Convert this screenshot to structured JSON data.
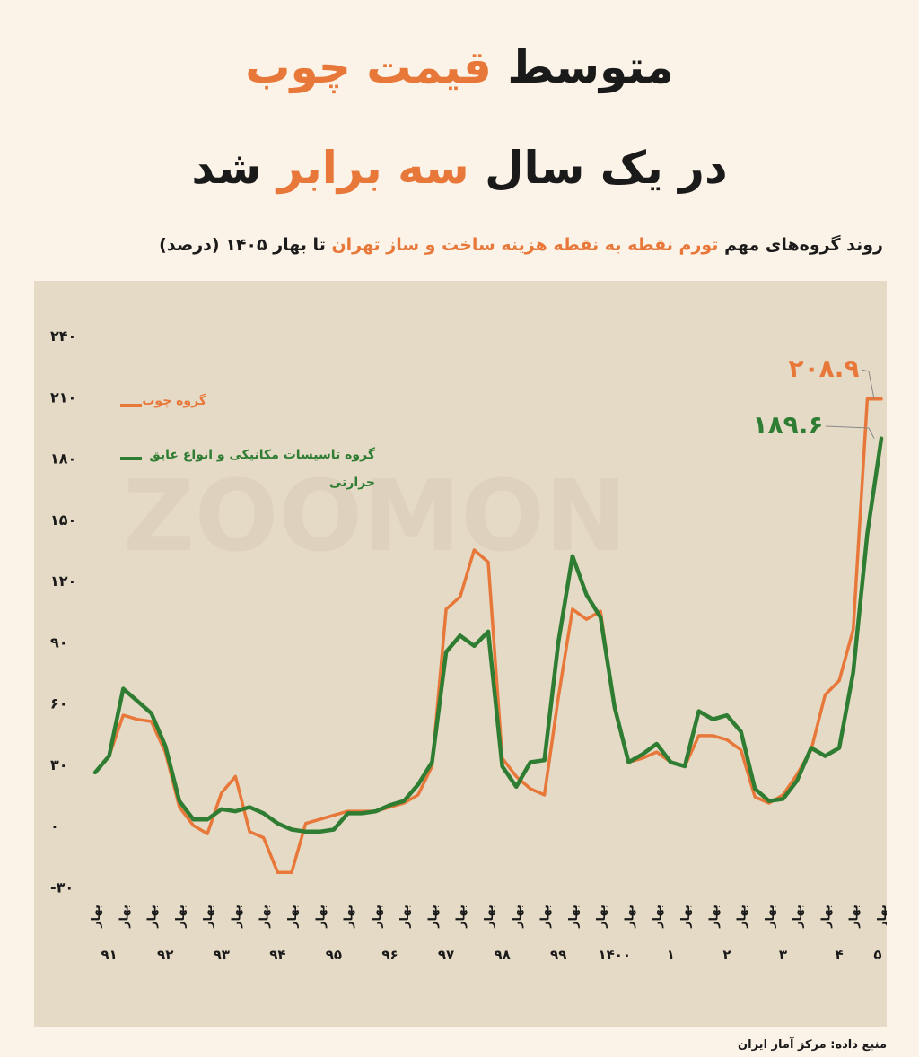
{
  "header": {
    "title_line1_part1": "متوسط",
    "title_line1_highlight": "قیمت چوب",
    "title_line2_part1": "در یک سال",
    "title_line2_highlight": "سه برابر",
    "title_line2_part2": "شد",
    "subtitle_part1": "روند گروه‌های مهم",
    "subtitle_highlight": "تورم نقطه به نقطه هزینه ساخت و ساز تهران",
    "subtitle_part2": "تا بهار ۱۴۰۵ (درصد)"
  },
  "watermark": "ZOOMON",
  "source": "منبع داده: مرکز آمار ایران",
  "colors": {
    "wood": "#e8783a",
    "mechanical": "#2f7d33",
    "background": "#fbf3e8",
    "plot_bg": "#e5dac6"
  },
  "chart_data": {
    "type": "line",
    "y_ticks": [
      "۲۴۰",
      "۲۱۰",
      "۱۸۰",
      "۱۵۰",
      "۱۲۰",
      "۹۰",
      "۶۰",
      "۳۰",
      "۰",
      "-۳۰"
    ],
    "ylim": [
      -30,
      240
    ],
    "x_season_label": "بهار",
    "season_ticks_per_year": 2,
    "year_labels": [
      "۹۱",
      "۹۲",
      "۹۳",
      "۹۴",
      "۹۵",
      "۹۶",
      "۹۷",
      "۹۸",
      "۹۹",
      "۱۴۰۰",
      "۱",
      "۲",
      "۳",
      "۴",
      "۵"
    ],
    "series": [
      {
        "name": "گروه چوب",
        "values": [
          26,
          34,
          54,
          52,
          51,
          36,
          9,
          0,
          -4,
          16,
          24,
          -3,
          -6,
          -23,
          -23,
          1,
          3,
          5,
          7,
          7,
          7,
          9,
          11,
          15,
          29,
          106,
          112,
          135,
          129,
          33,
          24,
          18,
          15,
          63,
          106,
          101,
          105,
          57,
          31,
          33,
          36,
          31,
          29,
          44,
          44,
          42,
          37,
          14,
          11,
          15,
          25,
          37,
          64,
          71,
          96,
          208.9,
          208.9
        ],
        "annotation": "۲۰۸.۹"
      },
      {
        "name": "گروه تاسیسات مکانیکی و انواع عایق حرارتی",
        "values": [
          26,
          34,
          67,
          61,
          55,
          39,
          12,
          3,
          3,
          8,
          7,
          9,
          6,
          1,
          -2,
          -3,
          -3,
          -2,
          6,
          6,
          7,
          10,
          12,
          20,
          31,
          85,
          93,
          88,
          95,
          29,
          19,
          31,
          32,
          90,
          132,
          113,
          102,
          58,
          31,
          35,
          40,
          31,
          29,
          56,
          52,
          54,
          46,
          18,
          12,
          13,
          22,
          38,
          34,
          38,
          75,
          143,
          189.6
        ],
        "annotation": "۱۸۹.۶"
      }
    ],
    "legend_placement": "top-left",
    "grid": false
  }
}
